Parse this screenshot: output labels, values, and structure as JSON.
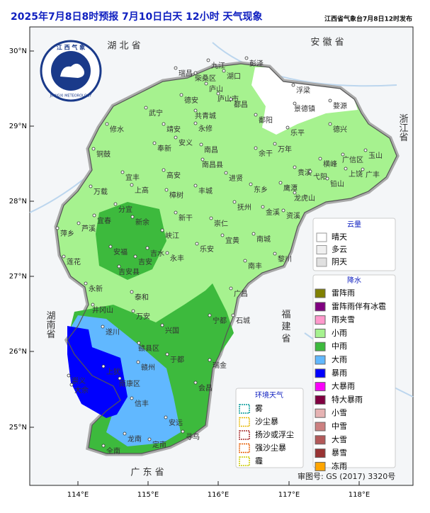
{
  "header": {
    "title": "2025年7月8日8时预报 7月10日白天 12小时  天气现象",
    "issuer": "江西省气象台7月8日12时发布"
  },
  "logo": {
    "top": "江 西 气 象",
    "bottom": "JIANGXI METEOROLOGY"
  },
  "axes": {
    "lat": [
      "30°N",
      "29°N",
      "28°N",
      "27°N",
      "26°N",
      "25°N"
    ],
    "lon": [
      "114°E",
      "115°E",
      "116°E",
      "117°E",
      "118°E"
    ]
  },
  "provinces": [
    "湖 北 省",
    "安 徽 省",
    "浙江省",
    "湖南省",
    "福 建 省",
    "广 东 省"
  ],
  "cities": [
    "瑞昌",
    "柴桑区",
    "九江",
    "湖口",
    "彭泽",
    "庐山",
    "庐山市",
    "德安",
    "都昌",
    "武宁",
    "共青城",
    "永修",
    "修水",
    "靖安",
    "安义",
    "奉新",
    "南昌",
    "南昌县",
    "铜鼓",
    "宜丰",
    "高安",
    "鄱阳",
    "景德镇",
    "浮梁",
    "婺源",
    "乐平",
    "德兴",
    "余干",
    "万年",
    "进贤",
    "东乡",
    "鹰潭",
    "贵溪",
    "弋阳",
    "横峰",
    "铅山",
    "上饶",
    "玉山",
    "广丰",
    "广信区",
    "万载",
    "上高",
    "宜春",
    "分宜",
    "新余",
    "樟树",
    "丰城",
    "抚州",
    "金溪",
    "资溪",
    "龙虎山",
    "萍乡",
    "芦溪",
    "新干",
    "峡江",
    "崇仁",
    "宜黄",
    "南城",
    "黎川",
    "乐安",
    "南丰",
    "莲花",
    "安福",
    "吉水",
    "永丰",
    "吉安",
    "吉安县",
    "永新",
    "泰和",
    "广昌",
    "井冈山",
    "遂川",
    "万安",
    "宁都",
    "石城",
    "兴国",
    "赣县区",
    "赣州",
    "于都",
    "瑞金",
    "上犹",
    "崇义",
    "大余",
    "南康区",
    "会昌",
    "信丰",
    "安远",
    "寻乌",
    "龙南",
    "定南",
    "全南"
  ],
  "cloud": {
    "title": "云量",
    "items": [
      "晴天",
      "多云",
      "阴天"
    ]
  },
  "precip": {
    "title": "降水",
    "items": [
      {
        "label": "雷阵雨",
        "color": "#808000"
      },
      {
        "label": "雷阵雨伴有冰雹",
        "color": "#800080"
      },
      {
        "label": "雨夹雪",
        "color": "#ff99cc"
      },
      {
        "label": "小雨",
        "color": "#a6f28f"
      },
      {
        "label": "中雨",
        "color": "#3dba3d"
      },
      {
        "label": "大雨",
        "color": "#61b8ff"
      },
      {
        "label": "暴雨",
        "color": "#0000fe"
      },
      {
        "label": "大暴雨",
        "color": "#fa00fa"
      },
      {
        "label": "特大暴雨",
        "color": "#800040"
      },
      {
        "label": "小雪",
        "color": "#e6b3b3"
      },
      {
        "label": "中雪",
        "color": "#cc8080"
      },
      {
        "label": "大雪",
        "color": "#b35959"
      },
      {
        "label": "暴雪",
        "color": "#993333"
      },
      {
        "label": "冻雨",
        "color": "#ffa500"
      }
    ]
  },
  "env": {
    "title": "环境天气",
    "items": [
      {
        "label": "雾",
        "color": "#009999"
      },
      {
        "label": "沙尘暴",
        "color": "#e6b800"
      },
      {
        "label": "扬沙或浮尘",
        "color": "#a52a2a"
      },
      {
        "label": "强沙尘暴",
        "color": "#e65c00"
      },
      {
        "label": "霾",
        "color": "#cccc00"
      }
    ]
  },
  "approval": "审图号: GS (2017) 3320号"
}
